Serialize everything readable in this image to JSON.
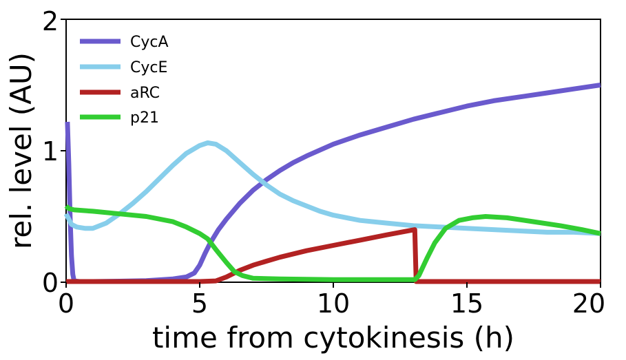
{
  "chart_data": {
    "type": "line",
    "title": "",
    "xlabel": "time from cytokinesis (h)",
    "ylabel": "rel. level (AU)",
    "xlim": [
      0,
      20
    ],
    "ylim": [
      0,
      2
    ],
    "x_ticks": [
      "0",
      "5",
      "10",
      "15",
      "20"
    ],
    "y_ticks": [
      "0",
      "1",
      "2"
    ],
    "grid": false,
    "legend_position": "top-left",
    "series": [
      {
        "name": "CycA",
        "color": "#6a5acd",
        "points": [
          [
            0.05,
            1.22
          ],
          [
            0.1,
            0.9
          ],
          [
            0.15,
            0.5
          ],
          [
            0.2,
            0.2
          ],
          [
            0.25,
            0.06
          ],
          [
            0.3,
            0.01
          ],
          [
            0.5,
            0.005
          ],
          [
            1,
            0.005
          ],
          [
            2,
            0.008
          ],
          [
            3,
            0.012
          ],
          [
            4,
            0.025
          ],
          [
            4.5,
            0.04
          ],
          [
            4.8,
            0.07
          ],
          [
            5,
            0.13
          ],
          [
            5.2,
            0.22
          ],
          [
            5.4,
            0.3
          ],
          [
            5.7,
            0.4
          ],
          [
            6,
            0.48
          ],
          [
            6.5,
            0.6
          ],
          [
            7,
            0.7
          ],
          [
            7.5,
            0.78
          ],
          [
            8,
            0.85
          ],
          [
            8.5,
            0.91
          ],
          [
            9,
            0.96
          ],
          [
            10,
            1.05
          ],
          [
            11,
            1.12
          ],
          [
            12,
            1.18
          ],
          [
            13,
            1.24
          ],
          [
            14,
            1.29
          ],
          [
            15,
            1.34
          ],
          [
            16,
            1.38
          ],
          [
            17,
            1.41
          ],
          [
            18,
            1.44
          ],
          [
            19,
            1.47
          ],
          [
            20,
            1.5
          ]
        ]
      },
      {
        "name": "CycE",
        "color": "#87ceeb",
        "points": [
          [
            0,
            0.52
          ],
          [
            0.2,
            0.44
          ],
          [
            0.4,
            0.42
          ],
          [
            0.7,
            0.41
          ],
          [
            1,
            0.41
          ],
          [
            1.5,
            0.45
          ],
          [
            2,
            0.52
          ],
          [
            2.5,
            0.6
          ],
          [
            3,
            0.69
          ],
          [
            3.5,
            0.79
          ],
          [
            4,
            0.89
          ],
          [
            4.5,
            0.98
          ],
          [
            5,
            1.04
          ],
          [
            5.3,
            1.06
          ],
          [
            5.6,
            1.05
          ],
          [
            6,
            1.0
          ],
          [
            6.5,
            0.91
          ],
          [
            7,
            0.82
          ],
          [
            7.5,
            0.74
          ],
          [
            8,
            0.67
          ],
          [
            8.5,
            0.62
          ],
          [
            9,
            0.58
          ],
          [
            9.5,
            0.54
          ],
          [
            10,
            0.51
          ],
          [
            11,
            0.47
          ],
          [
            12,
            0.45
          ],
          [
            13,
            0.43
          ],
          [
            14,
            0.42
          ],
          [
            15,
            0.41
          ],
          [
            16,
            0.4
          ],
          [
            17,
            0.39
          ],
          [
            18,
            0.38
          ],
          [
            19,
            0.38
          ],
          [
            20,
            0.37
          ]
        ]
      },
      {
        "name": "aRC",
        "color": "#b22222",
        "points": [
          [
            0,
            0.005
          ],
          [
            5,
            0.005
          ],
          [
            5.6,
            0.01
          ],
          [
            6,
            0.04
          ],
          [
            6.5,
            0.09
          ],
          [
            7,
            0.13
          ],
          [
            7.5,
            0.16
          ],
          [
            8,
            0.19
          ],
          [
            9,
            0.24
          ],
          [
            10,
            0.28
          ],
          [
            11,
            0.32
          ],
          [
            12,
            0.36
          ],
          [
            13.05,
            0.4
          ],
          [
            13.1,
            0.005
          ],
          [
            14,
            0.005
          ],
          [
            20,
            0.005
          ]
        ]
      },
      {
        "name": "p21",
        "color": "#32cd32",
        "points": [
          [
            0,
            0.58
          ],
          [
            0.1,
            0.56
          ],
          [
            0.3,
            0.55
          ],
          [
            1,
            0.54
          ],
          [
            2,
            0.52
          ],
          [
            3,
            0.5
          ],
          [
            4,
            0.46
          ],
          [
            4.5,
            0.42
          ],
          [
            5,
            0.37
          ],
          [
            5.3,
            0.33
          ],
          [
            5.6,
            0.25
          ],
          [
            6,
            0.15
          ],
          [
            6.3,
            0.08
          ],
          [
            6.6,
            0.05
          ],
          [
            7,
            0.03
          ],
          [
            8,
            0.025
          ],
          [
            10,
            0.02
          ],
          [
            12,
            0.02
          ],
          [
            13.05,
            0.02
          ],
          [
            13.2,
            0.05
          ],
          [
            13.5,
            0.18
          ],
          [
            13.8,
            0.3
          ],
          [
            14.2,
            0.41
          ],
          [
            14.7,
            0.47
          ],
          [
            15.2,
            0.49
          ],
          [
            15.7,
            0.5
          ],
          [
            16.5,
            0.49
          ],
          [
            17.5,
            0.46
          ],
          [
            18.5,
            0.43
          ],
          [
            19.3,
            0.4
          ],
          [
            20,
            0.37
          ]
        ]
      }
    ]
  }
}
